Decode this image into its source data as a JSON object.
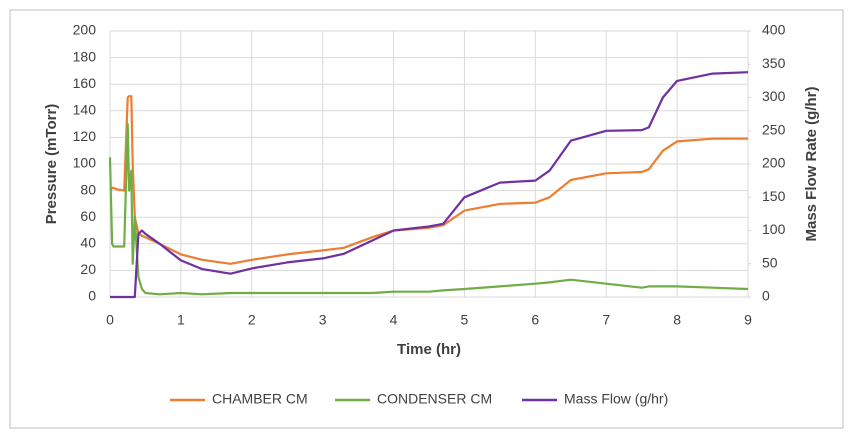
{
  "chart_data": {
    "type": "line",
    "x_label": "Time (hr)",
    "y_label": "Pressure (mTorr)",
    "y2_label": "Mass Flow Rate (g/hr)",
    "x": [
      0,
      0.03,
      0.05,
      0.1,
      0.2,
      0.25,
      0.27,
      0.3,
      0.32,
      0.35,
      0.4,
      0.45,
      0.5,
      0.7,
      1.0,
      1.3,
      1.7,
      2.0,
      2.5,
      3.0,
      3.3,
      3.7,
      4.0,
      4.5,
      4.7,
      5.0,
      5.5,
      6.0,
      6.2,
      6.5,
      7.0,
      7.5,
      7.6,
      7.8,
      8.0,
      8.5,
      9.0
    ],
    "series": [
      {
        "name": "CHAMBER CM",
        "color": "#ed7d31",
        "values": [
          80,
          82,
          82,
          81,
          80,
          150,
          151,
          151,
          100,
          60,
          48,
          46,
          45,
          40,
          32,
          28,
          25,
          28,
          32,
          35,
          37,
          45,
          50,
          52,
          54,
          65,
          70,
          71,
          75,
          88,
          93,
          94,
          96,
          110,
          117,
          119,
          119
        ]
      },
      {
        "name": "CONDENSER CM",
        "color": "#70ad47",
        "values": [
          105,
          40,
          38,
          38,
          38,
          130,
          80,
          95,
          25,
          60,
          15,
          6,
          3,
          2,
          3,
          2,
          3,
          3,
          3,
          3,
          3,
          3,
          4,
          4,
          5,
          6,
          8,
          10,
          11,
          13,
          10,
          7,
          8,
          8,
          8,
          7,
          6
        ]
      },
      {
        "name": "Mass Flow (g/hr)",
        "color": "#7030a0",
        "axis": "y2",
        "values": [
          0,
          0,
          0,
          0,
          0,
          0,
          0,
          0,
          0,
          0,
          95,
          100,
          95,
          80,
          55,
          42,
          35,
          43,
          52,
          58,
          65,
          85,
          100,
          106,
          110,
          150,
          172,
          175,
          190,
          235,
          250,
          251,
          255,
          300,
          325,
          336,
          338
        ]
      }
    ],
    "xlim": [
      0,
      9
    ],
    "xticks": [
      0,
      1,
      2,
      3,
      4,
      5,
      6,
      7,
      8,
      9
    ],
    "ylim": [
      0,
      200
    ],
    "yticks": [
      0,
      20,
      40,
      60,
      80,
      100,
      120,
      140,
      160,
      180,
      200
    ],
    "y2lim": [
      0,
      400
    ],
    "y2ticks": [
      0,
      50,
      100,
      150,
      200,
      250,
      300,
      350,
      400
    ],
    "grid": true,
    "legend": "bottom"
  }
}
